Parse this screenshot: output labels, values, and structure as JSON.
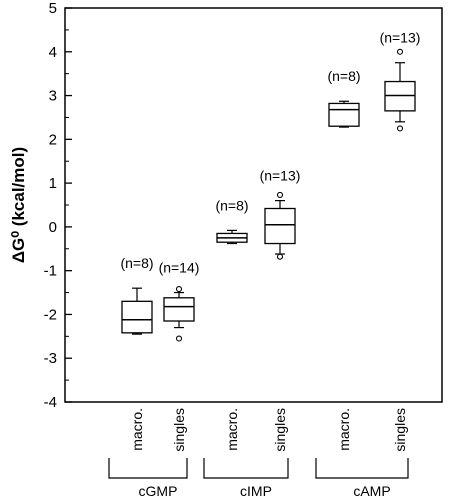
{
  "chart_data": {
    "type": "box",
    "ylabel": "ΔG⁰ (kcal/mol)",
    "ylim": [
      -4,
      5
    ],
    "yticks": [
      "5",
      "4",
      "3",
      "2",
      "1",
      "0",
      "-1",
      "-2",
      "-3",
      "-4"
    ],
    "groups": [
      {
        "name": "cGMP",
        "categories": [
          "macro.",
          "singles"
        ]
      },
      {
        "name": "cIMP",
        "categories": [
          "macro.",
          "singles"
        ]
      },
      {
        "name": "cAMP",
        "categories": [
          "macro.",
          "singles"
        ]
      }
    ],
    "boxes": [
      {
        "group": "cGMP",
        "category": "macro.",
        "n_label": "(n=8)",
        "whisker_low": -2.45,
        "q1": -2.42,
        "median": -2.12,
        "q3": -1.7,
        "whisker_high": -1.4,
        "outliers": []
      },
      {
        "group": "cGMP",
        "category": "singles",
        "n_label": "(n=14)",
        "whisker_low": -2.3,
        "q1": -2.15,
        "median": -1.82,
        "q3": -1.62,
        "whisker_high": -1.5,
        "outliers": [
          -1.42,
          -2.55
        ]
      },
      {
        "group": "cIMP",
        "category": "macro.",
        "n_label": "(n=8)",
        "whisker_low": -0.38,
        "q1": -0.35,
        "median": -0.25,
        "q3": -0.15,
        "whisker_high": -0.08,
        "outliers": []
      },
      {
        "group": "cIMP",
        "category": "singles",
        "n_label": "(n=13)",
        "whisker_low": -0.62,
        "q1": -0.38,
        "median": 0.05,
        "q3": 0.42,
        "whisker_high": 0.6,
        "outliers": [
          0.73,
          -0.68
        ]
      },
      {
        "group": "cAMP",
        "category": "macro.",
        "n_label": "(n=8)",
        "whisker_low": 2.28,
        "q1": 2.3,
        "median": 2.68,
        "q3": 2.82,
        "whisker_high": 2.87,
        "outliers": []
      },
      {
        "group": "cAMP",
        "category": "singles",
        "n_label": "(n=13)",
        "whisker_low": 2.4,
        "q1": 2.65,
        "median": 3.0,
        "q3": 3.32,
        "whisker_high": 3.75,
        "outliers": [
          4.0,
          2.25
        ]
      }
    ]
  }
}
